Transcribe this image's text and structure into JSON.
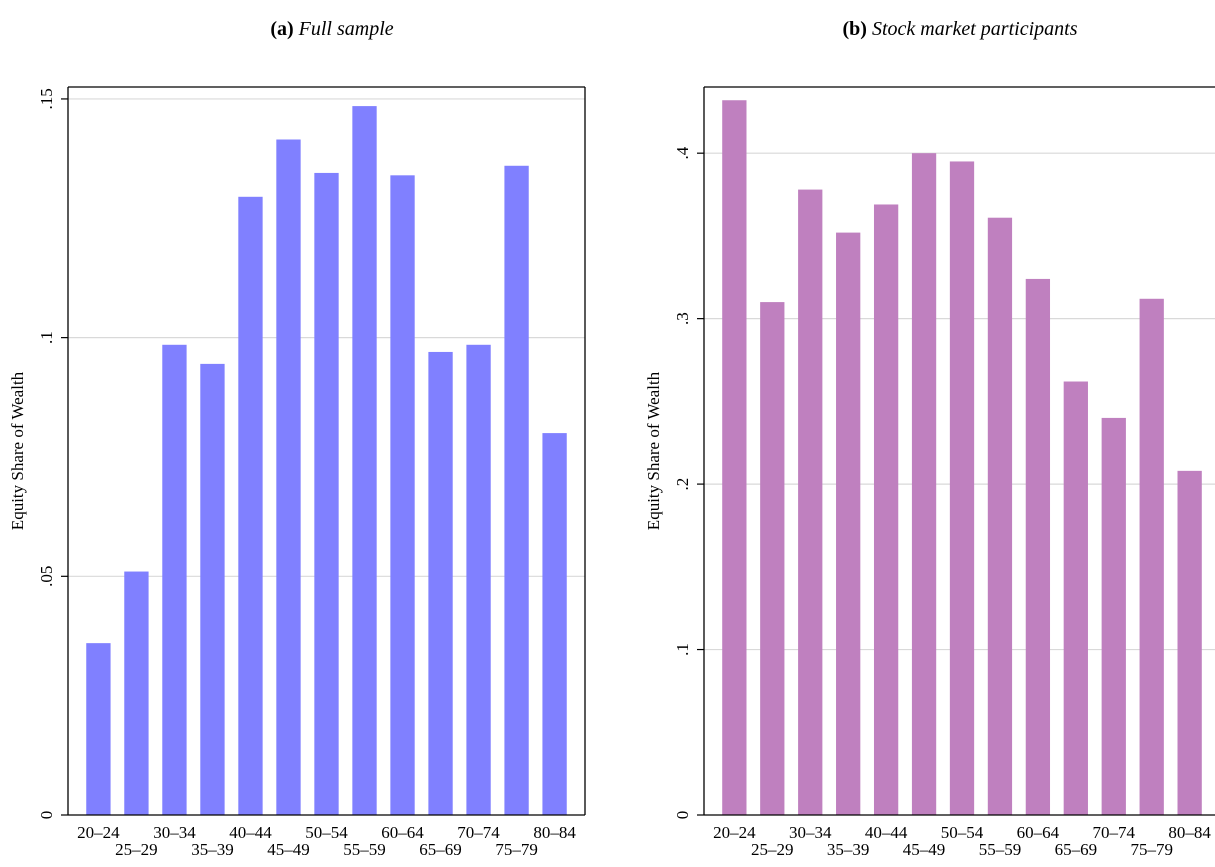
{
  "chart_data": [
    {
      "type": "bar",
      "panel_label": "(a)",
      "title": "Full sample",
      "xlabel": "",
      "ylabel": "Equity Share of Wealth",
      "ylim": [
        0,
        0.1525
      ],
      "y_ticks": [
        0,
        0.05,
        0.1,
        0.15
      ],
      "y_tick_labels": [
        "0",
        ".05",
        ".1",
        ".15"
      ],
      "grid": true,
      "bar_color": "#8080ff",
      "categories": [
        "20–24",
        "25–29",
        "30–34",
        "35–39",
        "40–44",
        "45–49",
        "50–54",
        "55–59",
        "60–64",
        "65–69",
        "70–74",
        "75–79",
        "80–84"
      ],
      "values": [
        0.036,
        0.051,
        0.0985,
        0.0945,
        0.1295,
        0.1415,
        0.1345,
        0.1485,
        0.134,
        0.097,
        0.0985,
        0.136,
        0.08
      ]
    },
    {
      "type": "bar",
      "panel_label": "(b)",
      "title": "Stock market participants",
      "xlabel": "",
      "ylabel": "Equity Share of Wealth",
      "ylim": [
        0,
        0.44
      ],
      "y_ticks": [
        0,
        0.1,
        0.2,
        0.3,
        0.4
      ],
      "y_tick_labels": [
        "0",
        ".1",
        ".2",
        ".3",
        ".4"
      ],
      "grid": true,
      "bar_color": "#bf80bf",
      "categories": [
        "20–24",
        "25–29",
        "30–34",
        "35–39",
        "40–44",
        "45–49",
        "50–54",
        "55–59",
        "60–64",
        "65–69",
        "70–74",
        "75–79",
        "80–84"
      ],
      "values": [
        0.432,
        0.31,
        0.378,
        0.352,
        0.369,
        0.4,
        0.395,
        0.361,
        0.324,
        0.262,
        0.24,
        0.312,
        0.208
      ]
    }
  ]
}
